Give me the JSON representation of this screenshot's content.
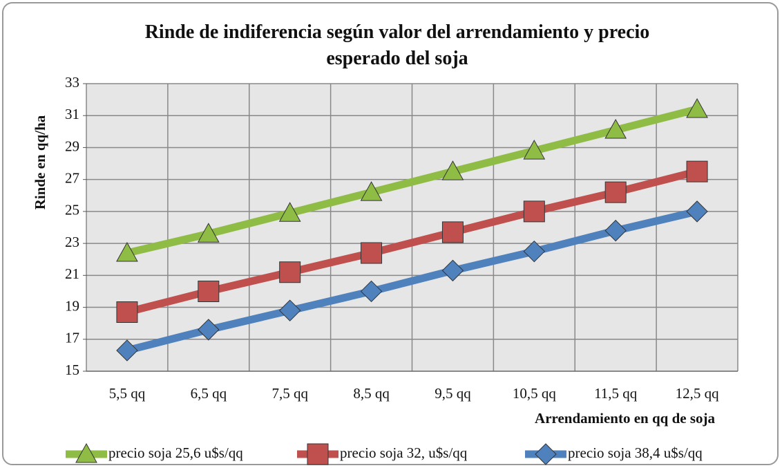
{
  "chart_data": {
    "type": "line",
    "title": "Rinde de indiferencia según valor del arrendamiento y precio esperado del soja",
    "x_label": "Arrendamiento en qq de soja",
    "y_label": "Rinde en qq/ha",
    "categories": [
      "5,5 qq",
      "6,5 qq",
      "7,5 qq",
      "8,5 qq",
      "9,5 qq",
      "10,5 qq",
      "11,5 qq",
      "12,5 qq"
    ],
    "series": [
      {
        "name": "precio soja 25,6  u$s/qq",
        "color": "#8fbc45",
        "marker": "triangle",
        "values": [
          22.4,
          23.6,
          24.9,
          26.2,
          27.5,
          28.8,
          30.1,
          31.4
        ]
      },
      {
        "name": "precio soja 32,  u$s/qq",
        "color": "#c0504d",
        "marker": "square",
        "values": [
          18.7,
          20.0,
          21.2,
          22.4,
          23.7,
          25.0,
          26.2,
          27.5
        ]
      },
      {
        "name": "precio soja 38,4  u$s/qq",
        "color": "#4f81bd",
        "marker": "diamond",
        "values": [
          16.3,
          17.6,
          18.8,
          20.0,
          21.3,
          22.5,
          23.8,
          25.0
        ]
      }
    ],
    "ylim": [
      15,
      33
    ],
    "yticks": [
      15,
      17,
      19,
      21,
      23,
      25,
      27,
      29,
      31,
      33
    ],
    "grid": true,
    "legend": "bottom"
  }
}
